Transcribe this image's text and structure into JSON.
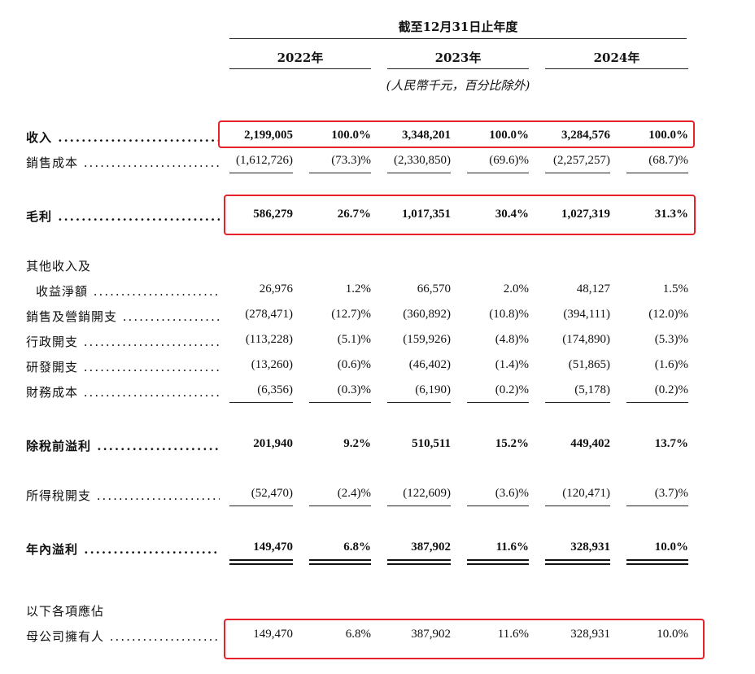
{
  "header": {
    "period": "截至12月31日止年度",
    "years": [
      "2022年",
      "2023年",
      "2024年"
    ],
    "unit_note": "(人民幣千元，百分比除外)"
  },
  "rows": [
    {
      "label": "收入",
      "bold": true,
      "values": [
        "2,199,005",
        "100.0%",
        "3,348,201",
        "100.0%",
        "3,284,576",
        "100.0%"
      ]
    },
    {
      "label": "銷售成本",
      "bold": false,
      "values": [
        "(1,612,726)",
        "(73.3)%",
        "(2,330,850)",
        "(69.6)%",
        "(2,257,257)",
        "(68.7)%"
      ]
    },
    {
      "label": "毛利",
      "bold": true,
      "values": [
        "586,279",
        "26.7%",
        "1,017,351",
        "30.4%",
        "1,027,319",
        "31.3%"
      ]
    },
    {
      "label": "其他收入及",
      "bold": false,
      "values": []
    },
    {
      "label": "收益淨額",
      "bold": false,
      "values": [
        "26,976",
        "1.2%",
        "66,570",
        "2.0%",
        "48,127",
        "1.5%"
      ]
    },
    {
      "label": "銷售及營銷開支",
      "bold": false,
      "values": [
        "(278,471)",
        "(12.7)%",
        "(360,892)",
        "(10.8)%",
        "(394,111)",
        "(12.0)%"
      ]
    },
    {
      "label": "行政開支",
      "bold": false,
      "values": [
        "(113,228)",
        "(5.1)%",
        "(159,926)",
        "(4.8)%",
        "(174,890)",
        "(5.3)%"
      ]
    },
    {
      "label": "研發開支",
      "bold": false,
      "values": [
        "(13,260)",
        "(0.6)%",
        "(46,402)",
        "(1.4)%",
        "(51,865)",
        "(1.6)%"
      ]
    },
    {
      "label": "財務成本",
      "bold": false,
      "values": [
        "(6,356)",
        "(0.3)%",
        "(6,190)",
        "(0.2)%",
        "(5,178)",
        "(0.2)%"
      ]
    },
    {
      "label": "除稅前溢利",
      "bold": true,
      "values": [
        "201,940",
        "9.2%",
        "510,511",
        "15.2%",
        "449,402",
        "13.7%"
      ]
    },
    {
      "label": "所得稅開支",
      "bold": false,
      "values": [
        "(52,470)",
        "(2.4)%",
        "(122,609)",
        "(3.6)%",
        "(120,471)",
        "(3.7)%"
      ]
    },
    {
      "label": "年內溢利",
      "bold": true,
      "values": [
        "149,470",
        "6.8%",
        "387,902",
        "11.6%",
        "328,931",
        "10.0%"
      ]
    },
    {
      "label": "以下各項應佔",
      "bold": false,
      "values": []
    },
    {
      "label": "母公司擁有人",
      "bold": false,
      "values": [
        "149,470",
        "6.8%",
        "387,902",
        "11.6%",
        "328,931",
        "10.0%"
      ]
    }
  ],
  "highlight_color": "#e5212a"
}
